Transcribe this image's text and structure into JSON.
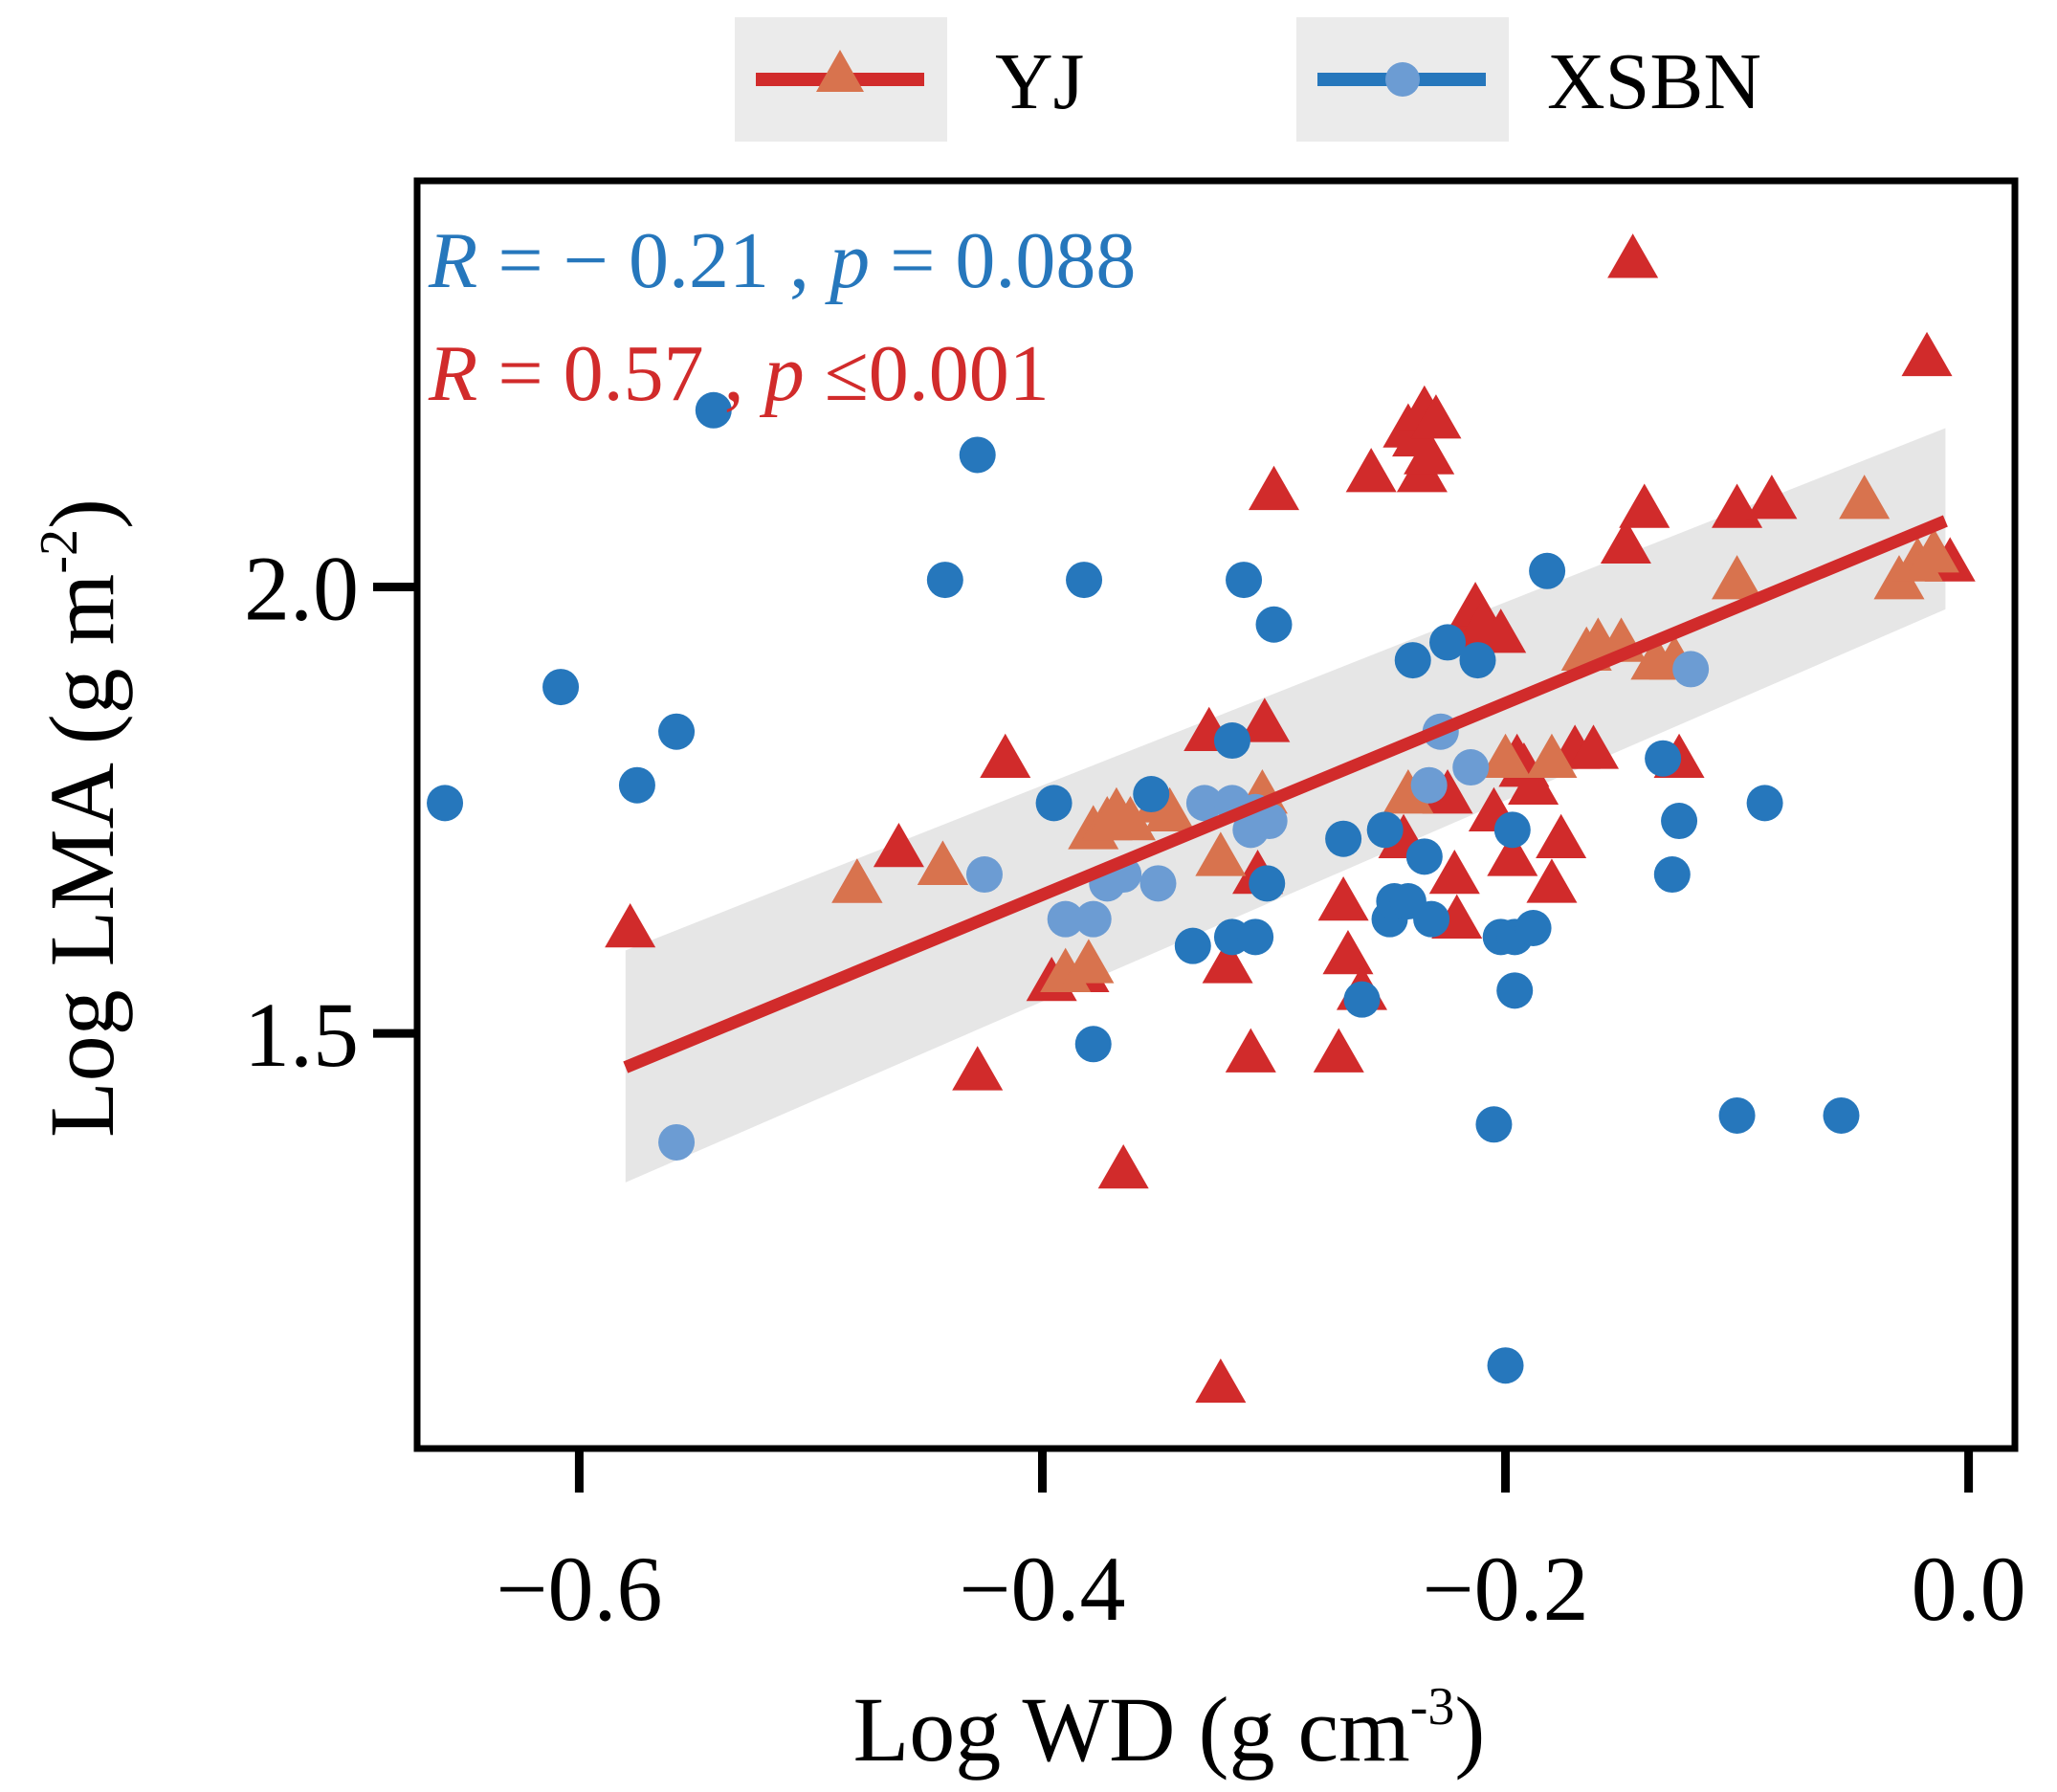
{
  "chart_data": {
    "type": "scatter",
    "title": "",
    "xlabel": "Log WD (g cm",
    "xlabel_sup": "-3",
    "xlabel_end": ")",
    "ylabel": "Log LMA (g m",
    "ylabel_sup": "-2",
    "ylabel_end": ")",
    "xlim": [
      -0.67,
      0.02
    ],
    "ylim": [
      1.035,
      2.455
    ],
    "xticks": [
      -0.6,
      -0.4,
      -0.2,
      0.0
    ],
    "xtick_labels": [
      "−0.6",
      "−0.4",
      "−0.2",
      "0.0"
    ],
    "yticks": [
      1.5,
      2.0
    ],
    "ytick_labels": [
      "1.5",
      "2.0"
    ],
    "legend": [
      {
        "label": "YJ",
        "color": "#d12b2b",
        "marker": "triangle",
        "line_color": "#d12b2b",
        "marker_color": "#d8734e"
      },
      {
        "label": "XSBN",
        "color": "#2677bc",
        "marker": "circle",
        "line_color": "#2677bc",
        "marker_color": "#6c9cd3"
      }
    ],
    "annotations": {
      "xsbn": {
        "r_label": "R",
        "r_text": " = − 0.21 , ",
        "p_label": "p",
        "p_text": " = 0.088",
        "color": "#2677bc"
      },
      "yj": {
        "r_label": "R",
        "r_text": " = 0.57 , ",
        "p_label": "p",
        "p_text": " ≤0.001",
        "color": "#d12b2b"
      }
    },
    "fit": {
      "series": "YJ",
      "x": [
        -0.58,
        -0.01
      ],
      "y": [
        1.462,
        2.074
      ],
      "ci_lower": [
        1.333,
        1.975
      ],
      "ci_upper": [
        1.593,
        2.178
      ],
      "line_color": "#d12b2b",
      "band_color": "#e6e6e6"
    },
    "series": [
      {
        "name": "YJ",
        "marker": "triangle",
        "color": "#d12b2b",
        "x": [
          -0.578,
          -0.48,
          -0.462,
          -0.443,
          -0.428,
          -0.416,
          -0.396,
          -0.382,
          -0.365,
          -0.328,
          -0.323,
          -0.32,
          -0.31,
          -0.307,
          -0.304,
          -0.3,
          -0.272,
          -0.27,
          -0.268,
          -0.262,
          -0.258,
          -0.244,
          -0.242,
          -0.238,
          -0.236,
          -0.235,
          -0.233,
          -0.23,
          -0.225,
          -0.222,
          -0.221,
          -0.219,
          -0.213,
          -0.21,
          -0.205,
          -0.202,
          -0.197,
          -0.195,
          -0.192,
          -0.188,
          -0.18,
          -0.176,
          -0.17,
          -0.162,
          -0.148,
          -0.145,
          -0.14,
          -0.125,
          -0.1,
          -0.085,
          -0.018,
          -0.008
        ],
        "y": [
          1.618,
          1.668,
          1.708,
          1.688,
          1.458,
          1.808,
          1.558,
          1.568,
          1.348,
          1.838,
          1.108,
          1.578,
          1.478,
          1.678,
          1.848,
          2.108,
          1.478,
          1.648,
          1.588,
          1.548,
          2.128,
          1.718,
          2.178,
          2.168,
          2.128,
          2.198,
          2.148,
          2.188,
          1.768,
          1.678,
          1.628,
          1.948,
          1.978,
          1.958,
          1.748,
          1.948,
          1.698,
          1.808,
          1.798,
          1.778,
          1.668,
          1.718,
          1.818,
          1.818,
          2.048,
          2.368,
          2.088,
          1.808,
          2.088,
          2.098,
          2.258,
          2.028
        ]
      },
      {
        "name": "YJ-fit",
        "marker": "triangle",
        "color": "#d8734e",
        "x": [
          -0.48,
          -0.443,
          -0.39,
          -0.38,
          -0.378,
          -0.372,
          -0.368,
          -0.362,
          -0.35,
          -0.345,
          -0.323,
          -0.305,
          -0.242,
          -0.2,
          -0.18,
          -0.165,
          -0.16,
          -0.15,
          -0.135,
          -0.127,
          -0.1,
          -0.045,
          -0.03,
          -0.022,
          -0.015
        ],
        "y": [
          1.668,
          1.688,
          1.568,
          1.578,
          1.728,
          1.738,
          1.748,
          1.738,
          1.758,
          1.748,
          1.698,
          1.768,
          1.768,
          1.808,
          1.808,
          1.928,
          1.938,
          1.938,
          1.918,
          1.918,
          2.008,
          2.098,
          2.008,
          2.028,
          2.038
        ]
      },
      {
        "name": "XSBN",
        "marker": "circle",
        "color": "#2677bc",
        "x": [
          -0.658,
          -0.608,
          -0.575,
          -0.558,
          -0.542,
          -0.428,
          -0.442,
          -0.395,
          -0.382,
          -0.378,
          -0.353,
          -0.335,
          -0.318,
          -0.318,
          -0.313,
          -0.308,
          -0.303,
          -0.3,
          -0.27,
          -0.262,
          -0.252,
          -0.25,
          -0.248,
          -0.242,
          -0.24,
          -0.235,
          -0.232,
          -0.225,
          -0.212,
          -0.205,
          -0.202,
          -0.2,
          -0.197,
          -0.196,
          -0.196,
          -0.188,
          -0.182,
          -0.132,
          -0.128,
          -0.125,
          -0.1,
          -0.088,
          -0.055
        ],
        "y": [
          1.758,
          1.888,
          1.778,
          1.838,
          2.198,
          2.148,
          2.008,
          1.758,
          2.008,
          1.488,
          1.768,
          1.598,
          1.828,
          1.608,
          2.008,
          1.608,
          1.668,
          1.958,
          1.718,
          1.538,
          1.728,
          1.628,
          1.648,
          1.648,
          1.918,
          1.698,
          1.628,
          1.938,
          1.918,
          1.398,
          1.608,
          1.128,
          1.728,
          1.548,
          1.608,
          1.618,
          2.018,
          1.808,
          1.678,
          1.738,
          1.408,
          1.758,
          1.408
        ]
      },
      {
        "name": "XSBN-fit",
        "marker": "circle",
        "color": "#6c9cd3",
        "x": [
          -0.558,
          -0.425,
          -0.39,
          -0.378,
          -0.372,
          -0.365,
          -0.35,
          -0.33,
          -0.318,
          -0.31,
          -0.308,
          -0.302,
          -0.233,
          -0.228,
          -0.215,
          -0.12
        ],
        "y": [
          1.378,
          1.678,
          1.628,
          1.628,
          1.668,
          1.678,
          1.668,
          1.758,
          1.758,
          1.728,
          1.748,
          1.738,
          1.778,
          1.838,
          1.798,
          1.908
        ]
      }
    ]
  }
}
